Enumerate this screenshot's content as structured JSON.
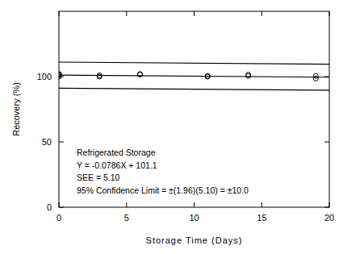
{
  "chart_data": {
    "type": "scatter",
    "x_label": "Storage Time (Days)",
    "y_label": "Recovery (%)",
    "annotations": [
      "Refrigerated Storage",
      "Y = -0.0786X + 101.1",
      "SEE = 5.10",
      "95% Confidence Limit = ±(1.96)(5.10) = ±10.0"
    ],
    "xlim": [
      0,
      20
    ],
    "ylim": [
      0,
      150
    ],
    "xticks": [
      0,
      5,
      10,
      15,
      20
    ],
    "yticks": [
      0,
      50,
      100
    ],
    "grid": false,
    "series": [
      {
        "type": "scatter",
        "marker": "circle",
        "color": "#000000",
        "x": [
          0,
          0,
          0,
          0,
          3,
          3,
          6,
          6,
          11,
          11,
          14,
          14,
          19,
          19
        ],
        "values": [
          100,
          101,
          101.5,
          102,
          100,
          101,
          102,
          101.5,
          100,
          100.5,
          100.5,
          101.5,
          98.5,
          100.5
        ]
      },
      {
        "type": "line",
        "line_style": "solid",
        "color": "#000000",
        "x": [
          0,
          20
        ],
        "values": [
          101.1,
          99.528
        ]
      },
      {
        "type": "line",
        "line_style": "solid",
        "color": "#000000",
        "x": [
          0,
          20
        ],
        "values": [
          111.1,
          109.528
        ]
      },
      {
        "type": "line",
        "line_style": "solid",
        "color": "#000000",
        "x": [
          0,
          20
        ],
        "values": [
          91.1,
          89.528
        ]
      }
    ]
  }
}
